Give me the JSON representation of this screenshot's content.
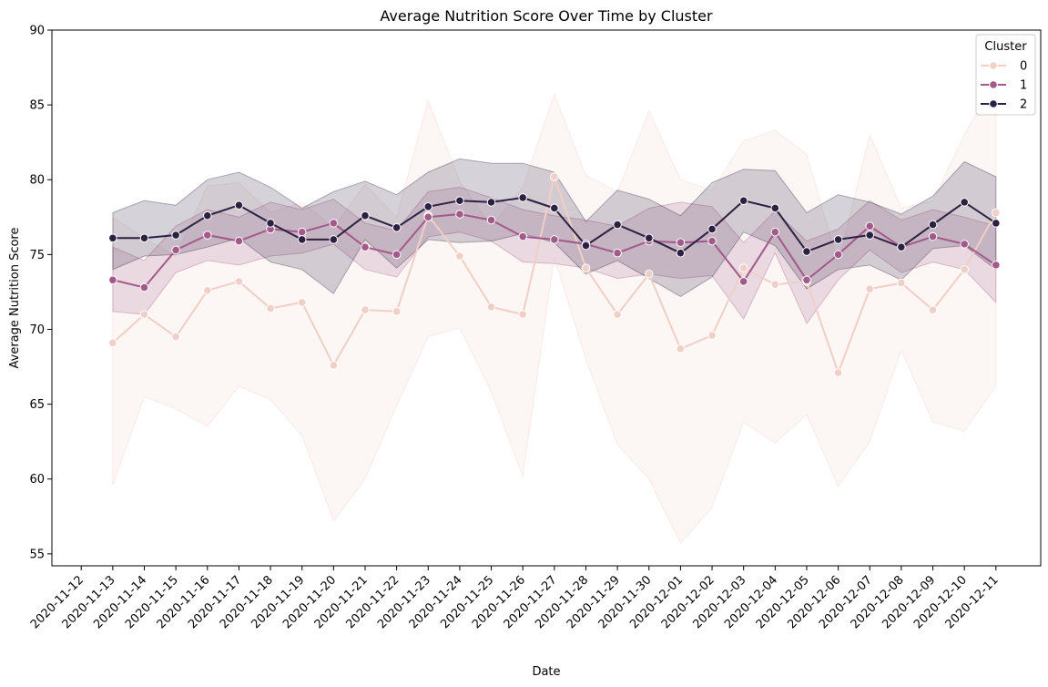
{
  "chart_data": {
    "type": "line",
    "title": "Average Nutrition Score Over Time by Cluster",
    "xlabel": "Date",
    "ylabel": "Average Nutrition Score",
    "ylim": [
      54.2,
      90
    ],
    "yticks": [
      55,
      60,
      65,
      70,
      75,
      80,
      85,
      90
    ],
    "x_ticks": [
      "2020-11-12",
      "2020-11-13",
      "2020-11-14",
      "2020-11-15",
      "2020-11-16",
      "2020-11-17",
      "2020-11-18",
      "2020-11-19",
      "2020-11-20",
      "2020-11-21",
      "2020-11-22",
      "2020-11-23",
      "2020-11-24",
      "2020-11-25",
      "2020-11-26",
      "2020-11-27",
      "2020-11-28",
      "2020-11-29",
      "2020-11-30",
      "2020-12-01",
      "2020-12-02",
      "2020-12-03",
      "2020-12-04",
      "2020-12-05",
      "2020-12-06",
      "2020-12-07",
      "2020-12-08",
      "2020-12-09",
      "2020-12-10",
      "2020-12-11"
    ],
    "x": [
      "2020-11-13",
      "2020-11-14",
      "2020-11-15",
      "2020-11-16",
      "2020-11-17",
      "2020-11-18",
      "2020-11-19",
      "2020-11-20",
      "2020-11-21",
      "2020-11-22",
      "2020-11-23",
      "2020-11-24",
      "2020-11-25",
      "2020-11-26",
      "2020-11-27",
      "2020-11-28",
      "2020-11-29",
      "2020-11-30",
      "2020-12-01",
      "2020-12-02",
      "2020-12-03",
      "2020-12-04",
      "2020-12-05",
      "2020-12-06",
      "2020-12-07",
      "2020-12-08",
      "2020-12-09",
      "2020-12-10",
      "2020-12-11"
    ],
    "legend_title": "Cluster",
    "legend_position": "top-right",
    "grid": false,
    "series": [
      {
        "name": "0",
        "color": "#f0cfc6",
        "band_opacity": 0.18,
        "values": [
          69.1,
          71.0,
          69.5,
          72.6,
          73.2,
          71.4,
          71.8,
          67.6,
          71.3,
          71.2,
          77.6,
          74.9,
          71.5,
          71.0,
          80.2,
          74.1,
          71.0,
          73.7,
          68.7,
          69.6,
          74.1,
          73.0,
          73.2,
          67.1,
          72.7,
          73.1,
          71.3,
          74.0,
          77.8
        ],
        "ci_lower": [
          59.6,
          65.5,
          64.7,
          63.5,
          66.2,
          65.3,
          62.9,
          57.2,
          60.0,
          64.9,
          69.5,
          70.1,
          65.8,
          60.2,
          74.8,
          68.0,
          62.3,
          60.0,
          55.7,
          58.1,
          63.8,
          62.4,
          64.3,
          59.5,
          62.5,
          68.6,
          63.8,
          63.2,
          66.2
        ],
        "ci_upper": [
          77.5,
          76.1,
          74.9,
          79.6,
          79.8,
          77.8,
          78.5,
          76.8,
          79.7,
          77.5,
          85.3,
          79.9,
          76.9,
          79.5,
          85.7,
          80.3,
          79.2,
          84.6,
          80.0,
          79.3,
          82.6,
          83.3,
          81.7,
          74.4,
          83.0,
          78.1,
          78.6,
          83.0,
          86.8
        ]
      },
      {
        "name": "1",
        "color": "#a3598a",
        "band_opacity": 0.18,
        "values": [
          73.3,
          72.8,
          75.3,
          76.3,
          75.9,
          76.7,
          76.5,
          77.1,
          75.5,
          75.0,
          77.5,
          77.7,
          77.3,
          76.2,
          76.0,
          75.7,
          75.1,
          75.9,
          75.8,
          75.9,
          73.2,
          76.5,
          73.3,
          75.0,
          76.9,
          75.5,
          76.2,
          75.7,
          74.3
        ],
        "ci_lower": [
          71.2,
          71.0,
          73.8,
          74.6,
          74.3,
          74.9,
          75.1,
          75.7,
          74.0,
          73.5,
          76.2,
          76.5,
          75.9,
          74.5,
          74.4,
          74.1,
          73.4,
          73.7,
          73.4,
          73.6,
          70.7,
          75.1,
          70.4,
          73.3,
          75.3,
          73.8,
          74.5,
          74.0,
          71.8
        ],
        "ci_upper": [
          75.5,
          74.6,
          76.9,
          78.0,
          77.5,
          78.5,
          78.0,
          78.7,
          77.1,
          76.6,
          79.2,
          79.5,
          78.8,
          78.0,
          77.6,
          77.3,
          76.9,
          78.1,
          78.5,
          78.2,
          75.8,
          77.9,
          75.9,
          76.7,
          78.6,
          77.3,
          78.0,
          77.5,
          76.9
        ]
      },
      {
        "name": "2",
        "color": "#2c2142",
        "band_opacity": 0.2,
        "values": [
          76.1,
          76.1,
          76.3,
          77.6,
          78.3,
          77.1,
          76.0,
          76.0,
          77.6,
          76.8,
          78.2,
          78.6,
          78.5,
          78.8,
          78.1,
          75.6,
          77.0,
          76.1,
          75.1,
          76.7,
          78.6,
          78.1,
          75.2,
          76.0,
          76.3,
          75.5,
          77.0,
          78.5,
          77.1
        ],
        "ci_lower": [
          74.0,
          74.9,
          75.0,
          75.5,
          76.1,
          74.5,
          74.0,
          72.4,
          76.0,
          74.1,
          76.0,
          75.8,
          75.9,
          76.4,
          75.8,
          73.7,
          74.6,
          73.4,
          72.2,
          73.5,
          76.5,
          75.6,
          72.7,
          74.0,
          74.3,
          73.3,
          75.4,
          75.6,
          74.0
        ],
        "ci_upper": [
          77.8,
          78.6,
          78.3,
          80.0,
          80.5,
          79.5,
          78.1,
          79.2,
          79.9,
          79.0,
          80.5,
          81.4,
          81.1,
          81.1,
          80.5,
          77.2,
          79.3,
          78.7,
          77.6,
          79.8,
          80.7,
          80.6,
          77.8,
          79.0,
          78.5,
          77.7,
          78.9,
          81.2,
          80.2
        ]
      }
    ]
  }
}
